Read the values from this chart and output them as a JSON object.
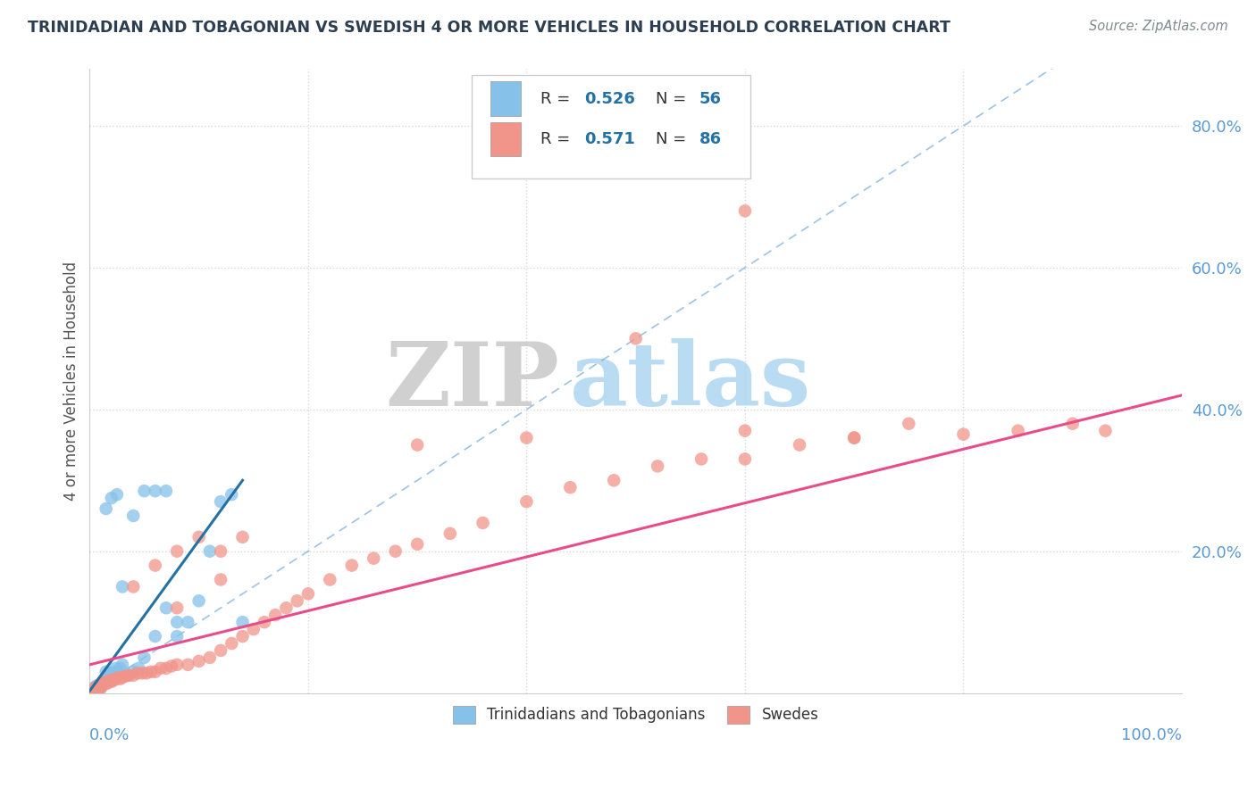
{
  "title": "TRINIDADIAN AND TOBAGONIAN VS SWEDISH 4 OR MORE VEHICLES IN HOUSEHOLD CORRELATION CHART",
  "source": "Source: ZipAtlas.com",
  "ylabel": "4 or more Vehicles in Household",
  "xlim": [
    0.0,
    1.0
  ],
  "ylim": [
    0.0,
    0.88
  ],
  "blue_color": "#85c1e9",
  "pink_color": "#f1948a",
  "blue_line_color": "#2471a3",
  "pink_line_color": "#e74c8b",
  "ref_line_color": "#5b9bd5",
  "grid_color": "#d5d8dc",
  "axis_label_color": "#5b9bd5",
  "title_color": "#2c3e50",
  "source_color": "#7f8c8d",
  "ylabel_color": "#555555",
  "watermark_zip_color": "#c8c8c8",
  "watermark_atlas_color": "#aed6f1",
  "legend_r_color": "#2471a3",
  "legend_n_color": "#2471a3",
  "blue_x": [
    0.002,
    0.003,
    0.003,
    0.004,
    0.004,
    0.005,
    0.005,
    0.005,
    0.006,
    0.006,
    0.006,
    0.007,
    0.007,
    0.008,
    0.008,
    0.009,
    0.009,
    0.01,
    0.01,
    0.011,
    0.011,
    0.012,
    0.013,
    0.014,
    0.015,
    0.016,
    0.017,
    0.019,
    0.02,
    0.022,
    0.024,
    0.026,
    0.028,
    0.03,
    0.035,
    0.04,
    0.045,
    0.05,
    0.06,
    0.07,
    0.08,
    0.09,
    0.1,
    0.11,
    0.12,
    0.13,
    0.14,
    0.015,
    0.02,
    0.025,
    0.03,
    0.04,
    0.05,
    0.06,
    0.07,
    0.08
  ],
  "blue_y": [
    0.0,
    0.002,
    0.005,
    0.003,
    0.007,
    0.002,
    0.005,
    0.008,
    0.004,
    0.007,
    0.01,
    0.005,
    0.009,
    0.006,
    0.01,
    0.008,
    0.012,
    0.007,
    0.012,
    0.01,
    0.015,
    0.012,
    0.015,
    0.018,
    0.03,
    0.022,
    0.025,
    0.028,
    0.025,
    0.03,
    0.035,
    0.03,
    0.035,
    0.04,
    0.025,
    0.03,
    0.035,
    0.05,
    0.08,
    0.12,
    0.08,
    0.1,
    0.13,
    0.2,
    0.27,
    0.28,
    0.1,
    0.26,
    0.275,
    0.28,
    0.15,
    0.25,
    0.285,
    0.285,
    0.285,
    0.1
  ],
  "pink_x": [
    0.002,
    0.003,
    0.004,
    0.005,
    0.005,
    0.006,
    0.006,
    0.007,
    0.008,
    0.008,
    0.009,
    0.01,
    0.01,
    0.011,
    0.012,
    0.013,
    0.014,
    0.015,
    0.016,
    0.017,
    0.018,
    0.019,
    0.02,
    0.022,
    0.024,
    0.026,
    0.028,
    0.03,
    0.033,
    0.036,
    0.04,
    0.044,
    0.048,
    0.052,
    0.056,
    0.06,
    0.065,
    0.07,
    0.075,
    0.08,
    0.09,
    0.1,
    0.11,
    0.12,
    0.13,
    0.14,
    0.15,
    0.16,
    0.17,
    0.18,
    0.19,
    0.2,
    0.22,
    0.24,
    0.26,
    0.28,
    0.3,
    0.33,
    0.36,
    0.4,
    0.44,
    0.48,
    0.52,
    0.56,
    0.6,
    0.65,
    0.7,
    0.75,
    0.8,
    0.85,
    0.9,
    0.93,
    0.3,
    0.4,
    0.5,
    0.6,
    0.04,
    0.06,
    0.08,
    0.1,
    0.12,
    0.14,
    0.6,
    0.7,
    0.08,
    0.12
  ],
  "pink_y": [
    0.003,
    0.004,
    0.005,
    0.004,
    0.007,
    0.005,
    0.008,
    0.006,
    0.007,
    0.01,
    0.008,
    0.007,
    0.012,
    0.01,
    0.012,
    0.014,
    0.015,
    0.013,
    0.016,
    0.015,
    0.017,
    0.018,
    0.016,
    0.018,
    0.02,
    0.022,
    0.02,
    0.022,
    0.024,
    0.025,
    0.025,
    0.028,
    0.028,
    0.028,
    0.03,
    0.03,
    0.035,
    0.035,
    0.038,
    0.04,
    0.04,
    0.045,
    0.05,
    0.06,
    0.07,
    0.08,
    0.09,
    0.1,
    0.11,
    0.12,
    0.13,
    0.14,
    0.16,
    0.18,
    0.19,
    0.2,
    0.21,
    0.225,
    0.24,
    0.27,
    0.29,
    0.3,
    0.32,
    0.33,
    0.33,
    0.35,
    0.36,
    0.38,
    0.365,
    0.37,
    0.38,
    0.37,
    0.35,
    0.36,
    0.5,
    0.68,
    0.15,
    0.18,
    0.2,
    0.22,
    0.2,
    0.22,
    0.37,
    0.36,
    0.12,
    0.16
  ],
  "blue_line_x": [
    0.0,
    0.14
  ],
  "blue_line_y": [
    0.003,
    0.3
  ],
  "pink_line_x": [
    0.0,
    1.0
  ],
  "pink_line_y": [
    0.04,
    0.42
  ]
}
